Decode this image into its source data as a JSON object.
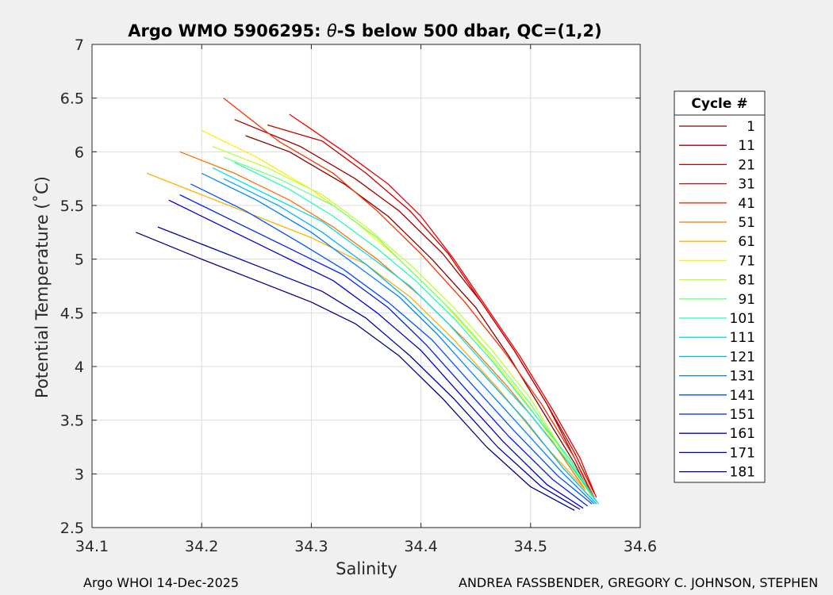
{
  "chart_data": {
    "type": "line",
    "title_prefix": "Argo WMO 5906295: ",
    "title_theta": "θ",
    "title_suffix": "-S below 500 dbar,  QC=(1,2)",
    "xlabel": "Salinity",
    "ylabel": "Potential Temperature (˚C)",
    "xlim": [
      34.1,
      34.6
    ],
    "ylim": [
      2.5,
      7
    ],
    "xticks": [
      "34.1",
      "34.2",
      "34.3",
      "34.4",
      "34.5",
      "34.6"
    ],
    "yticks": [
      "2.5",
      "3",
      "3.5",
      "4",
      "4.5",
      "5",
      "5.5",
      "6",
      "6.5",
      "7"
    ],
    "grid": true,
    "legend": {
      "title": "Cycle #",
      "placement": "right-outside",
      "entries": [
        {
          "label": "1",
          "color": "#7f0000"
        },
        {
          "label": "11",
          "color": "#a00000"
        },
        {
          "label": "21",
          "color": "#c80000"
        },
        {
          "label": "31",
          "color": "#ee0000"
        },
        {
          "label": "41",
          "color": "#ff3000"
        },
        {
          "label": "51",
          "color": "#ff7000"
        },
        {
          "label": "61",
          "color": "#ffb000"
        },
        {
          "label": "71",
          "color": "#ffee00"
        },
        {
          "label": "81",
          "color": "#c0ff30"
        },
        {
          "label": "91",
          "color": "#70ff80"
        },
        {
          "label": "101",
          "color": "#20ffb0"
        },
        {
          "label": "111",
          "color": "#00e0e8"
        },
        {
          "label": "121",
          "color": "#00b0ff"
        },
        {
          "label": "131",
          "color": "#0080ff"
        },
        {
          "label": "141",
          "color": "#0050ff"
        },
        {
          "label": "151",
          "color": "#0020f0"
        },
        {
          "label": "161",
          "color": "#0000d0"
        },
        {
          "label": "171",
          "color": "#0000a8"
        },
        {
          "label": "181",
          "color": "#000080"
        }
      ]
    },
    "series": [
      {
        "name": "1",
        "color": "#7f0000",
        "x": [
          34.24,
          34.28,
          34.33,
          34.37,
          34.41,
          34.45,
          34.48,
          34.51,
          34.54,
          34.555
        ],
        "y": [
          6.15,
          6.0,
          5.7,
          5.4,
          5.0,
          4.55,
          4.1,
          3.6,
          3.1,
          2.8
        ]
      },
      {
        "name": "11",
        "color": "#a00000",
        "x": [
          34.23,
          34.29,
          34.34,
          34.38,
          34.42,
          34.455,
          34.485,
          34.515,
          34.54,
          34.556
        ],
        "y": [
          6.3,
          6.05,
          5.75,
          5.45,
          5.05,
          4.6,
          4.15,
          3.65,
          3.15,
          2.8
        ]
      },
      {
        "name": "21",
        "color": "#c80000",
        "x": [
          34.26,
          34.31,
          34.35,
          34.39,
          34.425,
          34.455,
          34.485,
          34.515,
          34.54,
          34.558
        ],
        "y": [
          6.25,
          6.1,
          5.8,
          5.45,
          5.05,
          4.6,
          4.15,
          3.65,
          3.2,
          2.82
        ]
      },
      {
        "name": "31",
        "color": "#ee0000",
        "x": [
          34.28,
          34.33,
          34.37,
          34.4,
          34.43,
          34.46,
          34.49,
          34.52,
          34.545,
          34.56
        ],
        "y": [
          6.35,
          6.0,
          5.7,
          5.4,
          5.0,
          4.55,
          4.1,
          3.6,
          3.15,
          2.78
        ]
      },
      {
        "name": "41",
        "color": "#ff3000",
        "x": [
          34.22,
          34.27,
          34.32,
          34.36,
          34.4,
          34.44,
          34.475,
          34.51,
          34.54,
          34.558
        ],
        "y": [
          6.5,
          6.1,
          5.8,
          5.45,
          5.05,
          4.6,
          4.15,
          3.65,
          3.15,
          2.78
        ]
      },
      {
        "name": "51",
        "color": "#ff7000",
        "x": [
          34.18,
          34.23,
          34.28,
          34.32,
          34.36,
          34.4,
          34.44,
          34.48,
          34.52,
          34.55
        ],
        "y": [
          6.0,
          5.8,
          5.55,
          5.3,
          5.0,
          4.65,
          4.25,
          3.8,
          3.3,
          2.85
        ]
      },
      {
        "name": "61",
        "color": "#ffb000",
        "x": [
          34.15,
          34.2,
          34.25,
          34.3,
          34.35,
          34.39,
          34.43,
          34.47,
          34.51,
          34.55
        ],
        "y": [
          5.8,
          5.6,
          5.4,
          5.2,
          4.95,
          4.65,
          4.25,
          3.8,
          3.3,
          2.85
        ]
      },
      {
        "name": "71",
        "color": "#ffee00",
        "x": [
          34.2,
          34.25,
          34.3,
          34.34,
          34.38,
          34.42,
          34.455,
          34.49,
          34.525,
          34.555
        ],
        "y": [
          6.2,
          5.95,
          5.65,
          5.35,
          5.0,
          4.6,
          4.2,
          3.75,
          3.25,
          2.8
        ]
      },
      {
        "name": "81",
        "color": "#c0ff30",
        "x": [
          34.21,
          34.26,
          34.31,
          34.35,
          34.39,
          34.43,
          34.465,
          34.5,
          34.53,
          34.557
        ],
        "y": [
          6.05,
          5.85,
          5.6,
          5.3,
          4.95,
          4.55,
          4.15,
          3.7,
          3.2,
          2.78
        ]
      },
      {
        "name": "91",
        "color": "#70ff80",
        "x": [
          34.22,
          34.27,
          34.32,
          34.36,
          34.395,
          34.43,
          34.465,
          34.5,
          34.53,
          34.558
        ],
        "y": [
          5.95,
          5.75,
          5.5,
          5.2,
          4.85,
          4.5,
          4.1,
          3.65,
          3.2,
          2.76
        ]
      },
      {
        "name": "101",
        "color": "#20ffb0",
        "x": [
          34.23,
          34.28,
          34.32,
          34.36,
          34.395,
          34.43,
          34.465,
          34.5,
          34.535,
          34.56
        ],
        "y": [
          5.9,
          5.65,
          5.4,
          5.1,
          4.8,
          4.45,
          4.05,
          3.6,
          3.15,
          2.74
        ]
      },
      {
        "name": "111",
        "color": "#00e0e8",
        "x": [
          34.21,
          34.26,
          34.31,
          34.35,
          34.39,
          34.425,
          34.46,
          34.5,
          34.535,
          34.562
        ],
        "y": [
          5.85,
          5.6,
          5.35,
          5.05,
          4.75,
          4.4,
          4.0,
          3.55,
          3.1,
          2.72
        ]
      },
      {
        "name": "121",
        "color": "#00b0ff",
        "x": [
          34.22,
          34.27,
          34.31,
          34.35,
          34.385,
          34.42,
          34.455,
          34.495,
          34.53,
          34.56
        ],
        "y": [
          5.75,
          5.5,
          5.25,
          4.95,
          4.65,
          4.3,
          3.95,
          3.5,
          3.05,
          2.72
        ]
      },
      {
        "name": "131",
        "color": "#0080ff",
        "x": [
          34.2,
          34.25,
          34.3,
          34.34,
          34.38,
          34.415,
          34.45,
          34.49,
          34.53,
          34.558
        ],
        "y": [
          5.8,
          5.55,
          5.25,
          4.95,
          4.65,
          4.3,
          3.9,
          3.45,
          3.0,
          2.72
        ]
      },
      {
        "name": "141",
        "color": "#0050ff",
        "x": [
          34.19,
          34.24,
          34.29,
          34.33,
          34.37,
          34.41,
          34.445,
          34.485,
          34.525,
          34.556
        ],
        "y": [
          5.7,
          5.45,
          5.15,
          4.9,
          4.6,
          4.25,
          3.85,
          3.4,
          2.98,
          2.72
        ]
      },
      {
        "name": "151",
        "color": "#0020f0",
        "x": [
          34.18,
          34.23,
          34.28,
          34.33,
          34.37,
          34.405,
          34.44,
          34.48,
          34.52,
          34.552
        ],
        "y": [
          5.6,
          5.35,
          5.1,
          4.85,
          4.55,
          4.2,
          3.8,
          3.35,
          2.95,
          2.7
        ]
      },
      {
        "name": "161",
        "color": "#0000d0",
        "x": [
          34.17,
          34.22,
          34.27,
          34.32,
          34.36,
          34.4,
          34.435,
          34.475,
          34.515,
          34.548
        ],
        "y": [
          5.55,
          5.3,
          5.05,
          4.8,
          4.5,
          4.15,
          3.75,
          3.3,
          2.9,
          2.68
        ]
      },
      {
        "name": "171",
        "color": "#0000a8",
        "x": [
          34.16,
          34.21,
          34.26,
          34.31,
          34.35,
          34.39,
          34.43,
          34.47,
          34.51,
          34.545
        ],
        "y": [
          5.3,
          5.1,
          4.9,
          4.7,
          4.45,
          4.1,
          3.7,
          3.25,
          2.88,
          2.67
        ]
      },
      {
        "name": "181",
        "color": "#000080",
        "x": [
          34.14,
          34.2,
          34.25,
          34.3,
          34.34,
          34.38,
          34.42,
          34.46,
          34.5,
          34.54
        ],
        "y": [
          5.25,
          5.0,
          4.8,
          4.6,
          4.4,
          4.1,
          3.7,
          3.25,
          2.88,
          2.66
        ]
      }
    ]
  },
  "footer": {
    "left": "Argo WHOI 14-Dec-2025",
    "right": "ANDREA FASSBENDER, GREGORY C. JOHNSON, STEPHEN"
  }
}
